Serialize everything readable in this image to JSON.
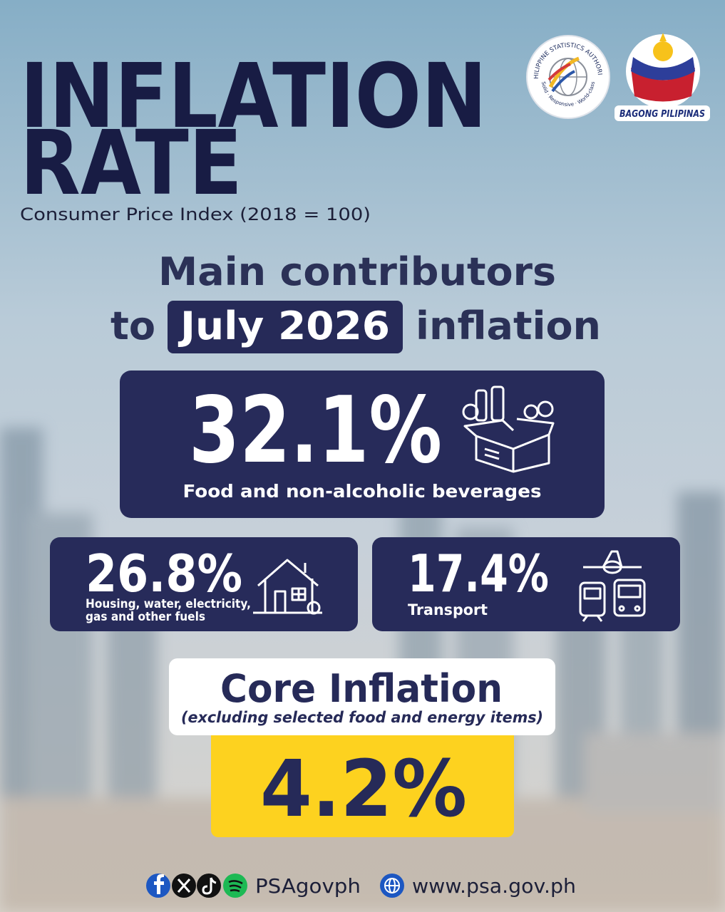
{
  "header": {
    "title_line1": "INFLATION",
    "title_line2": "RATE",
    "subtitle": "Consumer Price Index (2018 = 100)"
  },
  "logos": {
    "psa_name": "PHILIPPINE STATISTICS AUTHORITY",
    "psa_motto": "Solid · Responsive · World-class",
    "bagong": "BAGONG PILIPINAS"
  },
  "heading": {
    "line1": "Main contributors",
    "to": "to",
    "period": "July 2026",
    "tail": "inflation"
  },
  "contributors": [
    {
      "share": "32.1%",
      "label": "Food and non-alcoholic beverages"
    },
    {
      "share": "26.8%",
      "label_line1": "Housing, water, electricity,",
      "label_line2": "gas and other fuels"
    },
    {
      "share": "17.4%",
      "label": "Transport"
    }
  ],
  "core": {
    "title": "Core Inflation",
    "note": "(excluding selected food and energy items)",
    "value": "4.2%"
  },
  "footer": {
    "handle": "PSAgovph",
    "website": "www.psa.gov.ph"
  }
}
